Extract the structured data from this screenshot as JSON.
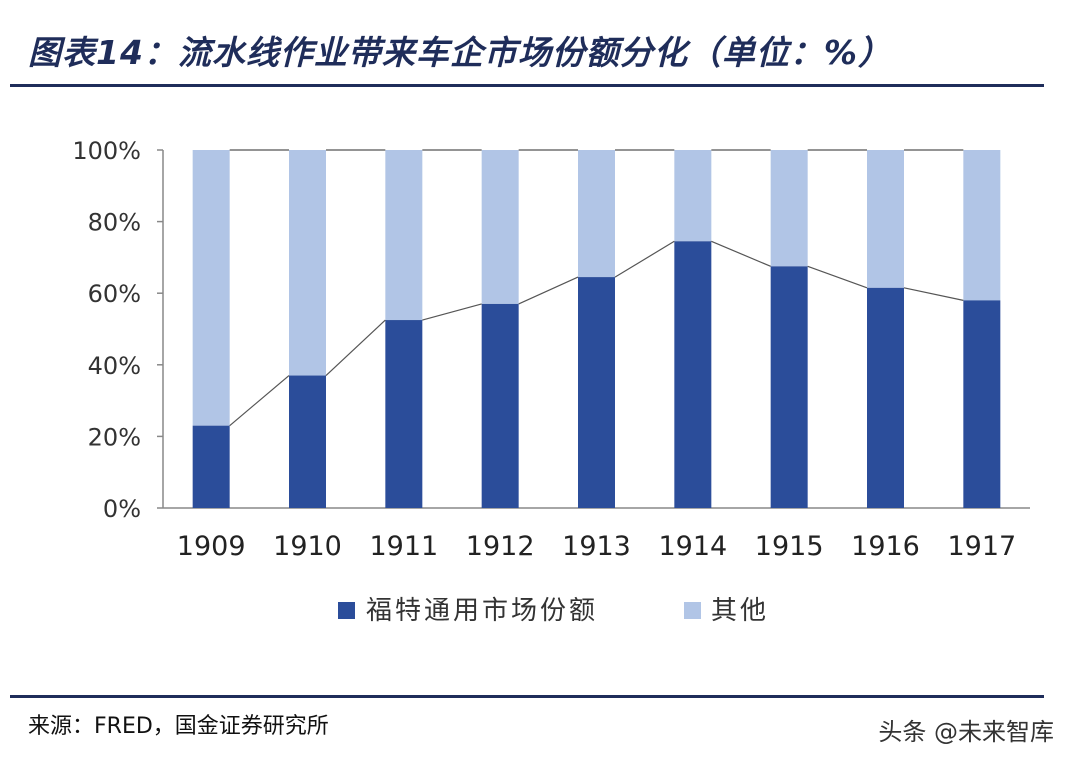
{
  "title": "图表14：流水线作业带来车企市场份额分化（单位：%）",
  "source": "来源：FRED，国金证券研究所",
  "watermark": "头条 @未来智库",
  "colors": {
    "ford": "#2b4d9a",
    "other": "#b1c5e6",
    "line": "#555555",
    "header": "#1f2d5a"
  },
  "chart_data": {
    "type": "bar",
    "stacked": true,
    "categories": [
      "1909",
      "1910",
      "1911",
      "1912",
      "1913",
      "1914",
      "1915",
      "1916",
      "1917"
    ],
    "series": [
      {
        "name": "福特通用市场份额",
        "values": [
          23,
          37,
          52.5,
          57,
          64.5,
          74.5,
          67.5,
          61.5,
          58
        ]
      },
      {
        "name": "其他",
        "values": [
          77,
          63,
          47.5,
          43,
          35.5,
          25.5,
          32.5,
          38.5,
          42
        ]
      }
    ],
    "yticks": [
      "0%",
      "20%",
      "40%",
      "60%",
      "80%",
      "100%"
    ],
    "ylim": [
      0,
      100
    ],
    "legend_position": "bottom",
    "connector_lines": true
  }
}
